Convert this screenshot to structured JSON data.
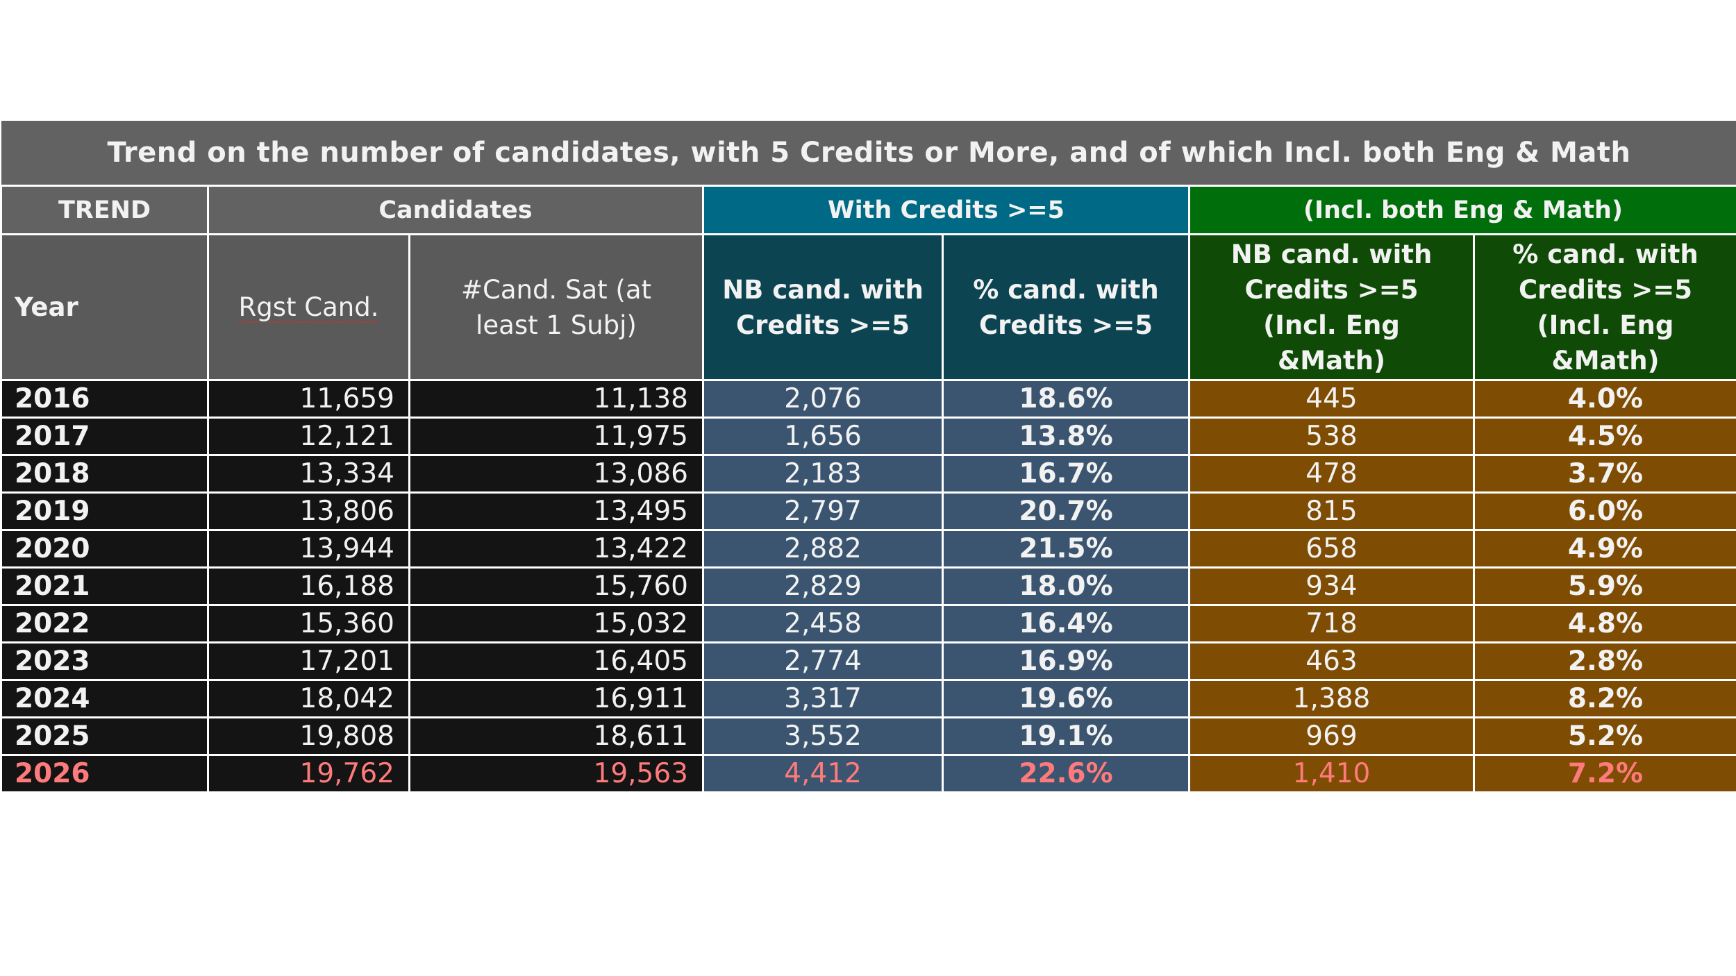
{
  "title": "Trend on the number of candidates, with 5 Credits or More, and of which Incl. both Eng & Math",
  "groups": {
    "trend": "TREND",
    "candidates": "Candidates",
    "credits": "With Credits >=5",
    "engmath": "(Incl. both Eng & Math)"
  },
  "columns": {
    "year": "Year",
    "rgst": "Rgst Cand.",
    "sat": "#Cand. Sat (at least 1 Subj)",
    "nb_credits": "NB cand. with Credits >=5",
    "pct_credits": "% cand. with Credits >=5",
    "nb_engmath": "NB cand. with Credits >=5 (Incl. Eng &Math)",
    "pct_engmath": "% cand. with Credits >=5 (Incl. Eng &Math)"
  },
  "rows": [
    {
      "year": "2016",
      "rgst": "11,659",
      "sat": "11,138",
      "nb_credits": "2,076",
      "pct_credits": "18.6%",
      "nb_engmath": "445",
      "pct_engmath": "4.0%"
    },
    {
      "year": "2017",
      "rgst": "12,121",
      "sat": "11,975",
      "nb_credits": "1,656",
      "pct_credits": "13.8%",
      "nb_engmath": "538",
      "pct_engmath": "4.5%"
    },
    {
      "year": "2018",
      "rgst": "13,334",
      "sat": "13,086",
      "nb_credits": "2,183",
      "pct_credits": "16.7%",
      "nb_engmath": "478",
      "pct_engmath": "3.7%"
    },
    {
      "year": "2019",
      "rgst": "13,806",
      "sat": "13,495",
      "nb_credits": "2,797",
      "pct_credits": "20.7%",
      "nb_engmath": "815",
      "pct_engmath": "6.0%"
    },
    {
      "year": "2020",
      "rgst": "13,944",
      "sat": "13,422",
      "nb_credits": "2,882",
      "pct_credits": "21.5%",
      "nb_engmath": "658",
      "pct_engmath": "4.9%"
    },
    {
      "year": "2021",
      "rgst": "16,188",
      "sat": "15,760",
      "nb_credits": "2,829",
      "pct_credits": "18.0%",
      "nb_engmath": "934",
      "pct_engmath": "5.9%"
    },
    {
      "year": "2022",
      "rgst": "15,360",
      "sat": "15,032",
      "nb_credits": "2,458",
      "pct_credits": "16.4%",
      "nb_engmath": "718",
      "pct_engmath": "4.8%"
    },
    {
      "year": "2023",
      "rgst": "17,201",
      "sat": "16,405",
      "nb_credits": "2,774",
      "pct_credits": "16.9%",
      "nb_engmath": "463",
      "pct_engmath": "2.8%"
    },
    {
      "year": "2024",
      "rgst": "18,042",
      "sat": "16,911",
      "nb_credits": "3,317",
      "pct_credits": "19.6%",
      "nb_engmath": "1,388",
      "pct_engmath": "8.2%"
    },
    {
      "year": "2025",
      "rgst": "19,808",
      "sat": "18,611",
      "nb_credits": "3,552",
      "pct_credits": "19.1%",
      "nb_engmath": "969",
      "pct_engmath": "5.2%"
    },
    {
      "year": "2026",
      "rgst": "19,762",
      "sat": "19,563",
      "nb_credits": "4,412",
      "pct_credits": "22.6%",
      "nb_engmath": "1,410",
      "pct_engmath": "7.2%"
    }
  ],
  "highlight_year": "2026",
  "colors": {
    "header_gray": "#626262",
    "credits_blue": "#006a86",
    "engmath_green": "#006e0b",
    "row_dark": "#141414",
    "row_blue": "#3b5570",
    "row_brown": "#7e4c03",
    "highlight_red": "#ff7b7b"
  }
}
